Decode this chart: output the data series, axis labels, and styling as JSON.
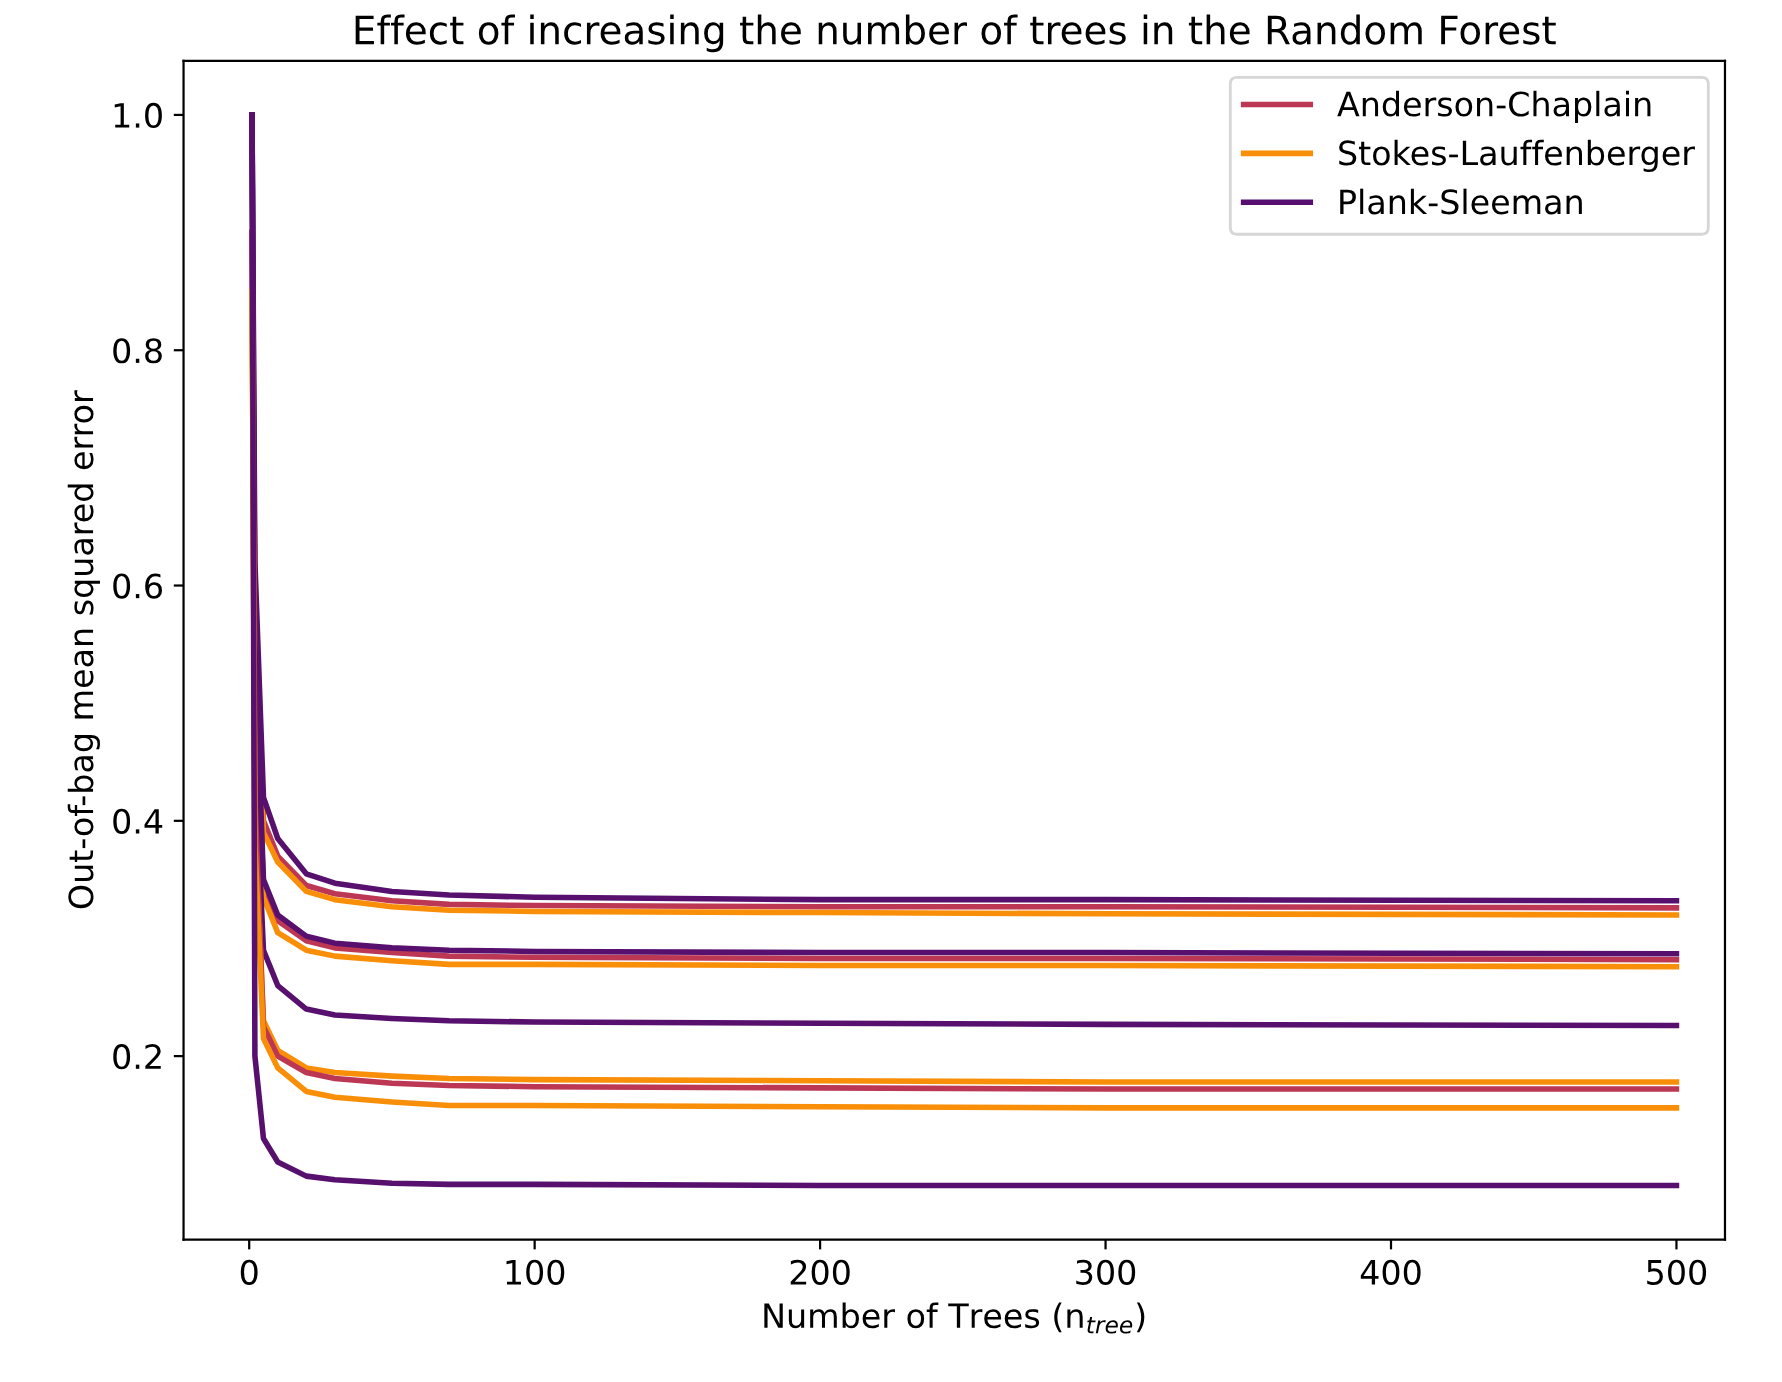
{
  "chart_data": {
    "type": "line",
    "title": "Effect of increasing the number of trees in the Random Forest",
    "xlabel": "Number of Trees (n$_{tree}$)",
    "ylabel": "Out-of-bag mean squared error",
    "x": [
      1,
      2,
      5,
      10,
      20,
      30,
      50,
      70,
      100,
      200,
      300,
      500
    ],
    "series": [
      {
        "name": "Anderson-Chaplain",
        "color": "#bc3754",
        "values": [
          0.9,
          0.58,
          0.4,
          0.37,
          0.345,
          0.338,
          0.332,
          0.329,
          0.328,
          0.327,
          0.327,
          0.326
        ]
      },
      {
        "name": "Stokes-Lauffenberger",
        "color": "#f98e09",
        "values": [
          0.85,
          0.55,
          0.39,
          0.365,
          0.34,
          0.333,
          0.327,
          0.324,
          0.323,
          0.322,
          0.321,
          0.32
        ]
      },
      {
        "name": "Plank-Sleeman",
        "color": "#57106e",
        "values": [
          1.0,
          0.62,
          0.42,
          0.385,
          0.355,
          0.347,
          0.34,
          0.337,
          0.335,
          0.333,
          0.333,
          0.332
        ]
      },
      {
        "color": "#bc3754",
        "values": [
          0.9,
          0.52,
          0.345,
          0.315,
          0.298,
          0.292,
          0.288,
          0.285,
          0.284,
          0.283,
          0.283,
          0.282
        ]
      },
      {
        "color": "#f98e09",
        "values": [
          0.85,
          0.5,
          0.335,
          0.305,
          0.29,
          0.285,
          0.281,
          0.278,
          0.278,
          0.277,
          0.277,
          0.276
        ]
      },
      {
        "color": "#57106e",
        "values": [
          1.0,
          0.55,
          0.35,
          0.32,
          0.302,
          0.296,
          0.292,
          0.29,
          0.289,
          0.288,
          0.288,
          0.287
        ]
      },
      {
        "color": "#57106e",
        "values": [
          1.0,
          0.45,
          0.29,
          0.26,
          0.24,
          0.235,
          0.232,
          0.23,
          0.229,
          0.228,
          0.227,
          0.226
        ]
      },
      {
        "color": "#f98e09",
        "values": [
          0.85,
          0.4,
          0.23,
          0.205,
          0.19,
          0.186,
          0.183,
          0.181,
          0.18,
          0.179,
          0.178,
          0.178
        ]
      },
      {
        "color": "#bc3754",
        "values": [
          0.9,
          0.42,
          0.225,
          0.2,
          0.186,
          0.181,
          0.177,
          0.175,
          0.174,
          0.173,
          0.172,
          0.172
        ]
      },
      {
        "color": "#f98e09",
        "values": [
          0.85,
          0.38,
          0.215,
          0.19,
          0.17,
          0.165,
          0.161,
          0.158,
          0.158,
          0.157,
          0.156,
          0.156
        ]
      },
      {
        "color": "#57106e",
        "values": [
          1.0,
          0.2,
          0.13,
          0.11,
          0.098,
          0.095,
          0.092,
          0.091,
          0.091,
          0.09,
          0.09,
          0.09
        ]
      }
    ],
    "xlim": [
      -23,
      517
    ],
    "ylim": [
      0.044,
      1.046
    ],
    "xticks": [
      0,
      100,
      200,
      300,
      400,
      500
    ],
    "yticks": [
      0.2,
      0.4,
      0.6,
      0.8,
      {
        "value": 1,
        "label": "1.0"
      }
    ],
    "legend": "top right",
    "grid": false
  }
}
